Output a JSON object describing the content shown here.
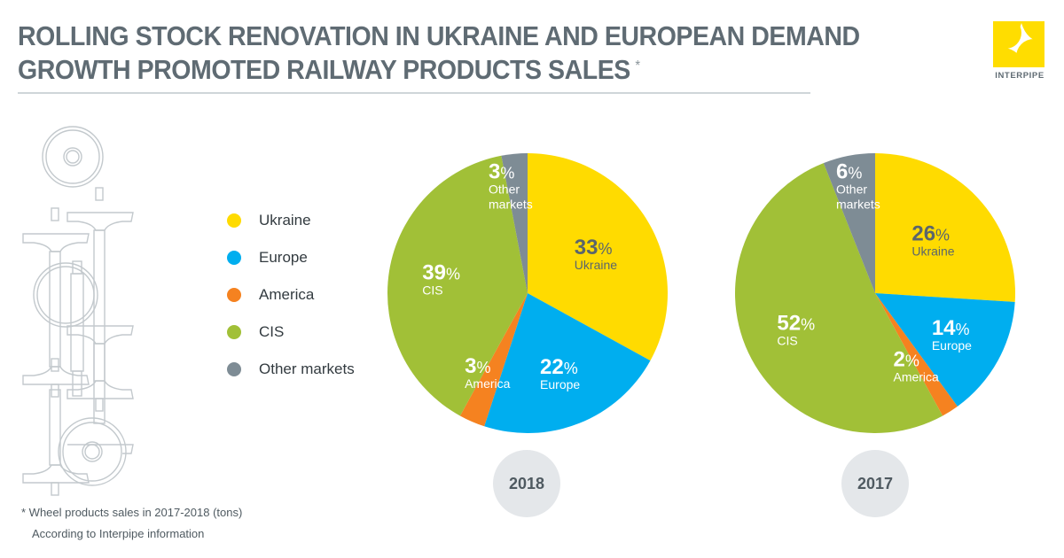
{
  "header": {
    "title_line1": "ROLLING STOCK RENOVATION IN UKRAINE AND EUROPEAN DEMAND",
    "title_line2": "GROWTH PROMOTED RAILWAY PRODUCTS SALES",
    "title_marker": "*"
  },
  "logo": {
    "name": "INTERPIPE",
    "color": "#FFDD00"
  },
  "legend": [
    {
      "label": "Ukraine",
      "color": "#FFDB00"
    },
    {
      "label": "Europe",
      "color": "#00AEEF"
    },
    {
      "label": "America",
      "color": "#F58220"
    },
    {
      "label": "CIS",
      "color": "#A1C037"
    },
    {
      "label": "Other markets",
      "color": "#7E8C95"
    }
  ],
  "chart_data": [
    {
      "type": "pie",
      "title": "2018",
      "categories": [
        "Ukraine",
        "Europe",
        "America",
        "CIS",
        "Other markets"
      ],
      "values": [
        33,
        22,
        3,
        39,
        3
      ],
      "unit": "%",
      "labels": [
        {
          "value": "33",
          "suffix": "%",
          "name": "Ukraine"
        },
        {
          "value": "22",
          "suffix": "%",
          "name": "Europe"
        },
        {
          "value": "3",
          "suffix": "%",
          "name": "America"
        },
        {
          "value": "39",
          "suffix": "%",
          "name": "CIS"
        },
        {
          "value": "3",
          "suffix": "%",
          "name": "Other markets"
        }
      ],
      "start": "12 o'clock",
      "direction": "clockwise"
    },
    {
      "type": "pie",
      "title": "2017",
      "categories": [
        "Ukraine",
        "Europe",
        "America",
        "CIS",
        "Other markets"
      ],
      "values": [
        26,
        14,
        2,
        52,
        6
      ],
      "unit": "%",
      "labels": [
        {
          "value": "26",
          "suffix": "%",
          "name": "Ukraine"
        },
        {
          "value": "14",
          "suffix": "%",
          "name": "Europe"
        },
        {
          "value": "2",
          "suffix": "%",
          "name": "America"
        },
        {
          "value": "52",
          "suffix": "%",
          "name": "CIS"
        },
        {
          "value": "6",
          "suffix": "%",
          "name": "Other markets"
        }
      ],
      "start": "12 o'clock",
      "direction": "clockwise"
    }
  ],
  "years": {
    "first": "2018",
    "second": "2017"
  },
  "footnote": {
    "line1": "* Wheel products sales in 2017-2018 (tons)",
    "line2": "According to Interpipe information"
  }
}
